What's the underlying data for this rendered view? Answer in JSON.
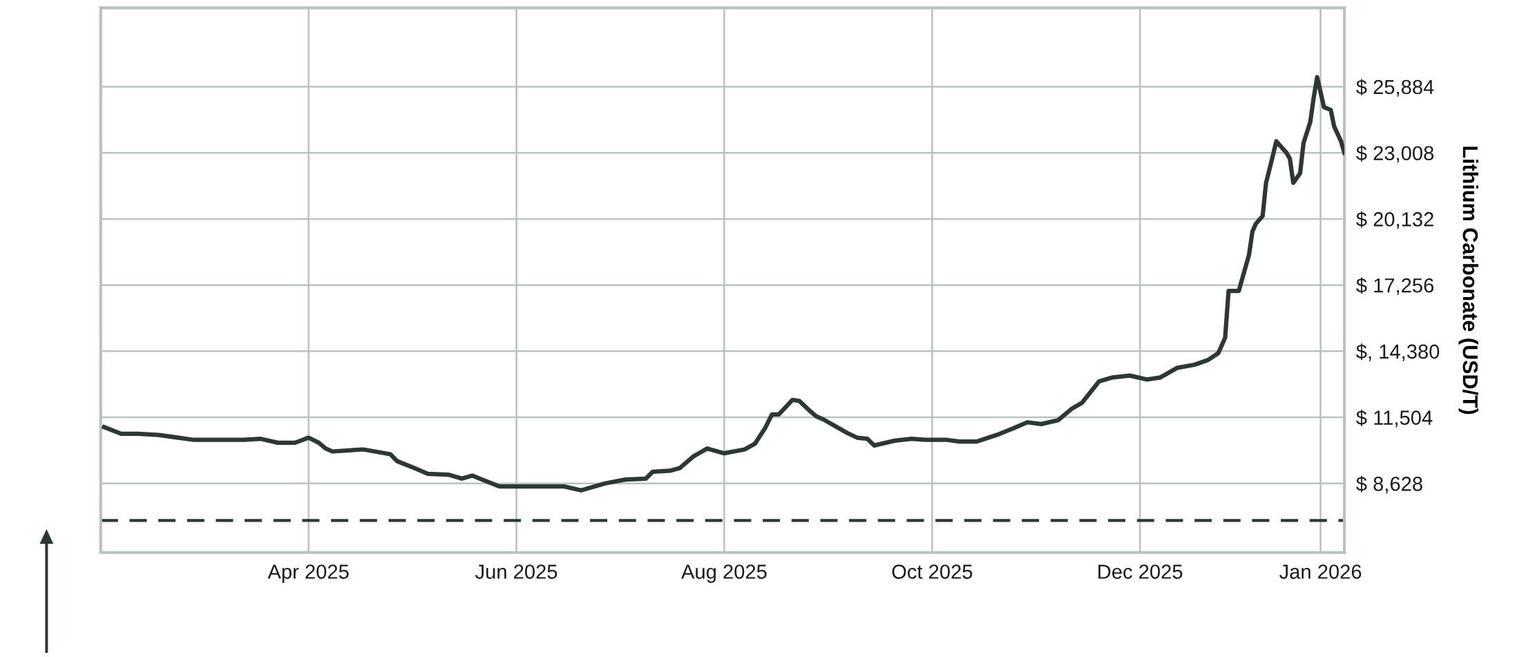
{
  "chart_data": {
    "type": "line",
    "ylabel": "Lithium Carbonate (USD/T)",
    "x": [
      "2025-01-31",
      "2025-02-05",
      "2025-02-10",
      "2025-02-16",
      "2025-02-26",
      "2025-03-13",
      "2025-03-18",
      "2025-03-23",
      "2025-03-28",
      "2025-04-01",
      "2025-04-04",
      "2025-04-06",
      "2025-04-08",
      "2025-04-17",
      "2025-04-25",
      "2025-04-27",
      "2025-05-02",
      "2025-05-06",
      "2025-05-12",
      "2025-05-16",
      "2025-05-19",
      "2025-05-27",
      "2025-06-15",
      "2025-06-20",
      "2025-06-27",
      "2025-07-03",
      "2025-07-09",
      "2025-07-11",
      "2025-07-16",
      "2025-07-19",
      "2025-07-23",
      "2025-07-27",
      "2025-08-01",
      "2025-08-07",
      "2025-08-10",
      "2025-08-13",
      "2025-08-15",
      "2025-08-17",
      "2025-08-21",
      "2025-08-23",
      "2025-08-26",
      "2025-08-28",
      "2025-08-30",
      "2025-09-02",
      "2025-09-06",
      "2025-09-09",
      "2025-09-12",
      "2025-09-14",
      "2025-09-20",
      "2025-09-25",
      "2025-09-29",
      "2025-10-05",
      "2025-10-09",
      "2025-10-14",
      "2025-10-20",
      "2025-10-25",
      "2025-10-29",
      "2025-11-02",
      "2025-11-07",
      "2025-11-11",
      "2025-11-14",
      "2025-11-19",
      "2025-11-23",
      "2025-11-28",
      "2025-12-03",
      "2025-12-07",
      "2025-12-12",
      "2025-12-17",
      "2025-12-21",
      "2025-12-24",
      "2025-12-26",
      "2025-12-27",
      "2025-12-30",
      "2026-01-02",
      "2026-01-03",
      "2026-01-04",
      "2026-01-06",
      "2026-01-07",
      "2026-01-09",
      "2026-01-10",
      "2026-01-13",
      "2026-01-14",
      "2026-01-15",
      "2026-01-17",
      "2026-01-18",
      "2026-01-20",
      "2026-01-21",
      "2026-01-22",
      "2026-01-24",
      "2026-01-26",
      "2026-01-27",
      "2026-01-29",
      "2026-01-30"
    ],
    "series": [
      {
        "color": "#2d3832",
        "values": [
          11080,
          10790,
          10790,
          10740,
          10530,
          10530,
          10570,
          10400,
          10400,
          10620,
          10400,
          10150,
          10020,
          10110,
          9900,
          9600,
          9300,
          9050,
          9010,
          8840,
          8970,
          8500,
          8500,
          8330,
          8630,
          8800,
          8840,
          9140,
          9180,
          9300,
          9810,
          10150,
          9940,
          10110,
          10360,
          11040,
          11630,
          11630,
          12260,
          12220,
          11800,
          11550,
          11420,
          11170,
          10830,
          10620,
          10570,
          10280,
          10490,
          10570,
          10530,
          10530,
          10450,
          10450,
          10740,
          11040,
          11290,
          11210,
          11380,
          11880,
          12140,
          13070,
          13240,
          13320,
          13150,
          13240,
          13660,
          13790,
          14000,
          14300,
          14970,
          17000,
          17000,
          18570,
          19580,
          19920,
          20260,
          21700,
          22880,
          23510,
          23010,
          22750,
          21700,
          22120,
          23430,
          24360,
          25420,
          26300,
          24990,
          24870,
          24150,
          23510,
          23010
        ]
      }
    ],
    "xlim": [
      "2025-01-30",
      "2026-01-30"
    ],
    "xticks": [
      {
        "value": "2025-04-01",
        "label": "Apr 2025"
      },
      {
        "value": "2025-06-01",
        "label": "Jun 2025"
      },
      {
        "value": "2025-08-01",
        "label": "Aug 2025"
      },
      {
        "value": "2025-10-01",
        "label": "Oct 2025"
      },
      {
        "value": "2025-12-01",
        "label": "Dec 2025"
      },
      {
        "value": "2026-01-23",
        "label": "Jan 2026"
      }
    ],
    "ylim": [
      5625,
      29310
    ],
    "yticks": [
      {
        "value": 8628,
        "label": "$ 8,628"
      },
      {
        "value": 11504,
        "label": "$ 11,504"
      },
      {
        "value": 14380,
        "label": "$, 14,380"
      },
      {
        "value": 17256,
        "label": "$ 17,256"
      },
      {
        "value": 20132,
        "label": "$ 20,132"
      },
      {
        "value": 23008,
        "label": "$ 23,008"
      },
      {
        "value": 25884,
        "label": "$ 25,884"
      }
    ],
    "grid": true,
    "ref_lines": [
      {
        "axis": "y",
        "value": 7020,
        "color": "#2d3832",
        "line_style": "dashed"
      }
    ]
  }
}
